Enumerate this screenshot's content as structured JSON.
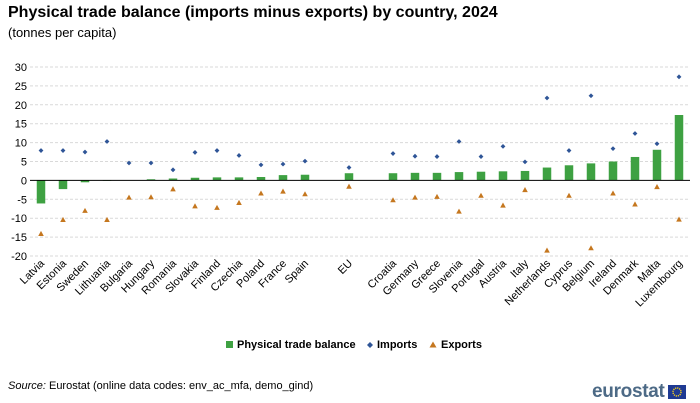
{
  "title": "Physical trade balance (imports minus exports) by country, 2024",
  "subtitle": "(tonnes per capita)",
  "source": {
    "label": "Source:",
    "text": " Eurostat (online data codes: env_ac_mfa, demo_gind)"
  },
  "logo": {
    "text": "eurostat"
  },
  "colors": {
    "balance": "#3ea142",
    "imports": "#2f5597",
    "exports": "#c5771f",
    "grid": "#d9d9d9",
    "axis": "#000000"
  },
  "chart_data": {
    "type": "bar",
    "title": "Physical trade balance (imports minus exports) by country, 2024",
    "subtitle": "(tonnes per capita)",
    "xlabel": "",
    "ylabel": "",
    "ylim": [
      -20,
      30
    ],
    "yticks": [
      30,
      25,
      20,
      15,
      10,
      5,
      0,
      -5,
      -10,
      -15,
      -20
    ],
    "grid": "horizontal dashed",
    "legend": "bottom-center",
    "categories": [
      "Latvia",
      "Estonia",
      "Sweden",
      "Lithuania",
      "Bulgaria",
      "Hungary",
      "Romania",
      "Slovakia",
      "Finland",
      "Czechia",
      "Poland",
      "France",
      "Spain",
      "",
      "EU",
      "",
      "Croatia",
      "Germany",
      "Greece",
      "Slovenia",
      "Portugal",
      "Austria",
      "Italy",
      "Netherlands",
      "Cyprus",
      "Belgium",
      "Ireland",
      "Denmark",
      "Malta",
      "Luxembourg"
    ],
    "series": [
      {
        "name": "Physical trade balance",
        "type": "bar",
        "values": [
          -6.1,
          -2.3,
          -0.5,
          -0.1,
          0.0,
          0.3,
          0.5,
          0.7,
          0.8,
          0.8,
          0.9,
          1.4,
          1.5,
          null,
          1.9,
          null,
          1.9,
          2.0,
          2.0,
          2.2,
          2.3,
          2.4,
          2.5,
          3.4,
          4.0,
          4.5,
          5.0,
          6.2,
          8.1,
          17.3
        ]
      },
      {
        "name": "Imports",
        "type": "scatter",
        "marker": "diamond",
        "values": [
          7.9,
          7.9,
          7.5,
          10.3,
          4.6,
          4.6,
          2.8,
          7.4,
          7.9,
          6.6,
          4.1,
          4.3,
          5.1,
          null,
          3.4,
          null,
          7.1,
          6.4,
          6.3,
          10.3,
          6.3,
          9.0,
          4.9,
          21.8,
          7.9,
          22.4,
          8.4,
          12.4,
          9.7,
          27.4
        ]
      },
      {
        "name": "Exports",
        "type": "scatter",
        "marker": "triangle",
        "values": [
          -14.1,
          -10.4,
          -8.0,
          -10.4,
          -4.5,
          -4.4,
          -2.3,
          -6.8,
          -7.2,
          -5.9,
          -3.4,
          -2.9,
          -3.6,
          null,
          -1.6,
          null,
          -5.2,
          -4.5,
          -4.3,
          -8.2,
          -4.0,
          -6.6,
          -2.5,
          -18.5,
          -4.0,
          -17.9,
          -3.4,
          -6.3,
          -1.7,
          -10.3
        ]
      }
    ]
  }
}
